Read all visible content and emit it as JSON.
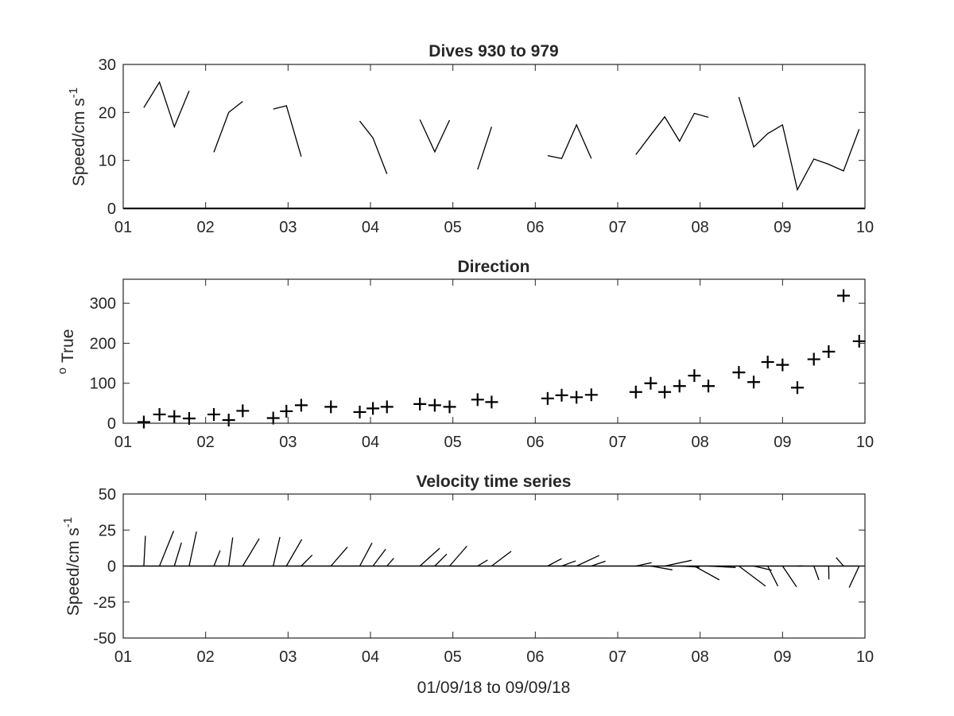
{
  "chart_data": [
    {
      "type": "line",
      "title": "Dives 930 to 979",
      "ylabel": "Speed/cm s",
      "ylabel_sup": "-1",
      "xlim": [
        1,
        10
      ],
      "ylim": [
        0,
        30
      ],
      "xticks": [
        "01",
        "02",
        "03",
        "04",
        "05",
        "06",
        "07",
        "08",
        "09",
        "10"
      ],
      "yticks": [
        0,
        10,
        20,
        30
      ],
      "grid": false,
      "zero_line": true,
      "segments": [
        [
          [
            1.25,
            21
          ],
          [
            1.44,
            26.3
          ],
          [
            1.62,
            17
          ],
          [
            1.8,
            24.5
          ]
        ],
        [
          [
            2.1,
            11.7
          ],
          [
            2.28,
            20
          ],
          [
            2.45,
            22.3
          ]
        ],
        [
          [
            2.82,
            20.7
          ],
          [
            2.98,
            21.4
          ],
          [
            3.16,
            10.8
          ]
        ],
        [
          [
            3.87,
            18.2
          ],
          [
            4.03,
            14.7
          ],
          [
            4.2,
            7.2
          ]
        ],
        [
          [
            4.6,
            18.5
          ],
          [
            4.78,
            11.8
          ],
          [
            4.96,
            18.4
          ]
        ],
        [
          [
            5.3,
            8.1
          ],
          [
            5.47,
            17
          ]
        ],
        [
          [
            6.15,
            11
          ],
          [
            6.32,
            10.4
          ],
          [
            6.5,
            17.4
          ],
          [
            6.68,
            10.4
          ]
        ],
        [
          [
            7.22,
            11.2
          ],
          [
            7.4,
            15.3
          ],
          [
            7.57,
            19.1
          ],
          [
            7.75,
            14
          ],
          [
            7.93,
            19.8
          ],
          [
            8.1,
            19
          ]
        ],
        [
          [
            8.47,
            23.2
          ],
          [
            8.65,
            12.8
          ],
          [
            8.82,
            15.6
          ],
          [
            9.0,
            17.4
          ],
          [
            9.18,
            3.9
          ],
          [
            9.38,
            10.3
          ],
          [
            9.56,
            9.2
          ],
          [
            9.74,
            7.8
          ],
          [
            9.93,
            16.5
          ]
        ]
      ]
    },
    {
      "type": "scatter",
      "title": "Direction",
      "ylabel": "True",
      "ylabel_prefix": "o",
      "marker": "+",
      "xlim": [
        1,
        10
      ],
      "ylim": [
        0,
        360
      ],
      "xticks": [
        "01",
        "02",
        "03",
        "04",
        "05",
        "06",
        "07",
        "08",
        "09",
        "10"
      ],
      "yticks": [
        0,
        100,
        200,
        300
      ],
      "grid": false,
      "x": [
        1.25,
        1.44,
        1.62,
        1.8,
        2.1,
        2.28,
        2.45,
        2.82,
        2.98,
        3.16,
        3.52,
        3.87,
        4.03,
        4.2,
        4.6,
        4.78,
        4.96,
        5.3,
        5.47,
        6.15,
        6.32,
        6.5,
        6.68,
        7.22,
        7.4,
        7.57,
        7.75,
        7.93,
        8.1,
        8.47,
        8.65,
        8.82,
        9.0,
        9.18,
        9.38,
        9.56,
        9.74,
        9.93
      ],
      "y": [
        3,
        22,
        17,
        12,
        22,
        8,
        31,
        13,
        30,
        45,
        41,
        28,
        37,
        41,
        48,
        45,
        41,
        59,
        53,
        62,
        70,
        65,
        71,
        78,
        100,
        78,
        93,
        119,
        93,
        127,
        103,
        153,
        146,
        89,
        160,
        179,
        319,
        205
      ]
    },
    {
      "type": "vector",
      "title": "Velocity time series",
      "ylabel": "Speed/cm s",
      "ylabel_sup": "-1",
      "xlabel": "01/09/18 to 09/09/18",
      "xlim": [
        1,
        10
      ],
      "ylim": [
        -50,
        50
      ],
      "xticks": [
        "01",
        "02",
        "03",
        "04",
        "05",
        "06",
        "07",
        "08",
        "09",
        "10"
      ],
      "yticks": [
        50,
        25,
        0,
        -25,
        -50
      ],
      "grid": false,
      "zero_line": true,
      "vectors": [
        {
          "x": 1.25,
          "speed": 21,
          "dir": 3
        },
        {
          "x": 1.44,
          "speed": 26.3,
          "dir": 22
        },
        {
          "x": 1.62,
          "speed": 17,
          "dir": 17
        },
        {
          "x": 1.8,
          "speed": 24.5,
          "dir": 12
        },
        {
          "x": 2.1,
          "speed": 11.7,
          "dir": 22
        },
        {
          "x": 2.28,
          "speed": 20,
          "dir": 8
        },
        {
          "x": 2.45,
          "speed": 22.3,
          "dir": 31
        },
        {
          "x": 2.82,
          "speed": 20.7,
          "dir": 13
        },
        {
          "x": 2.98,
          "speed": 21.4,
          "dir": 30
        },
        {
          "x": 3.16,
          "speed": 10.8,
          "dir": 45
        },
        {
          "x": 3.52,
          "speed": 17.5,
          "dir": 41
        },
        {
          "x": 3.87,
          "speed": 18.2,
          "dir": 28
        },
        {
          "x": 4.03,
          "speed": 14.7,
          "dir": 37
        },
        {
          "x": 4.2,
          "speed": 7.2,
          "dir": 41
        },
        {
          "x": 4.6,
          "speed": 18.5,
          "dir": 48
        },
        {
          "x": 4.78,
          "speed": 11.8,
          "dir": 45
        },
        {
          "x": 4.96,
          "speed": 18.4,
          "dir": 41
        },
        {
          "x": 5.3,
          "speed": 8.1,
          "dir": 59
        },
        {
          "x": 5.47,
          "speed": 17,
          "dir": 53
        },
        {
          "x": 6.15,
          "speed": 11,
          "dir": 62
        },
        {
          "x": 6.32,
          "speed": 10.4,
          "dir": 70
        },
        {
          "x": 6.5,
          "speed": 17.4,
          "dir": 65
        },
        {
          "x": 6.68,
          "speed": 10.4,
          "dir": 71
        },
        {
          "x": 7.22,
          "speed": 11.2,
          "dir": 78
        },
        {
          "x": 7.4,
          "speed": 15.3,
          "dir": 100
        },
        {
          "x": 7.57,
          "speed": 19.1,
          "dir": 78
        },
        {
          "x": 7.75,
          "speed": 14,
          "dir": 93
        },
        {
          "x": 7.93,
          "speed": 19.8,
          "dir": 119
        },
        {
          "x": 8.1,
          "speed": 19,
          "dir": 93
        },
        {
          "x": 8.47,
          "speed": 23.2,
          "dir": 127
        },
        {
          "x": 8.65,
          "speed": 12.8,
          "dir": 103
        },
        {
          "x": 8.82,
          "speed": 15.6,
          "dir": 153
        },
        {
          "x": 9.0,
          "speed": 17.4,
          "dir": 146
        },
        {
          "x": 9.18,
          "speed": 3.9,
          "dir": 89
        },
        {
          "x": 9.38,
          "speed": 10.3,
          "dir": 160
        },
        {
          "x": 9.56,
          "speed": 9.2,
          "dir": 179
        },
        {
          "x": 9.74,
          "speed": 7.8,
          "dir": 319
        },
        {
          "x": 9.93,
          "speed": 16.5,
          "dir": 205
        }
      ]
    }
  ]
}
